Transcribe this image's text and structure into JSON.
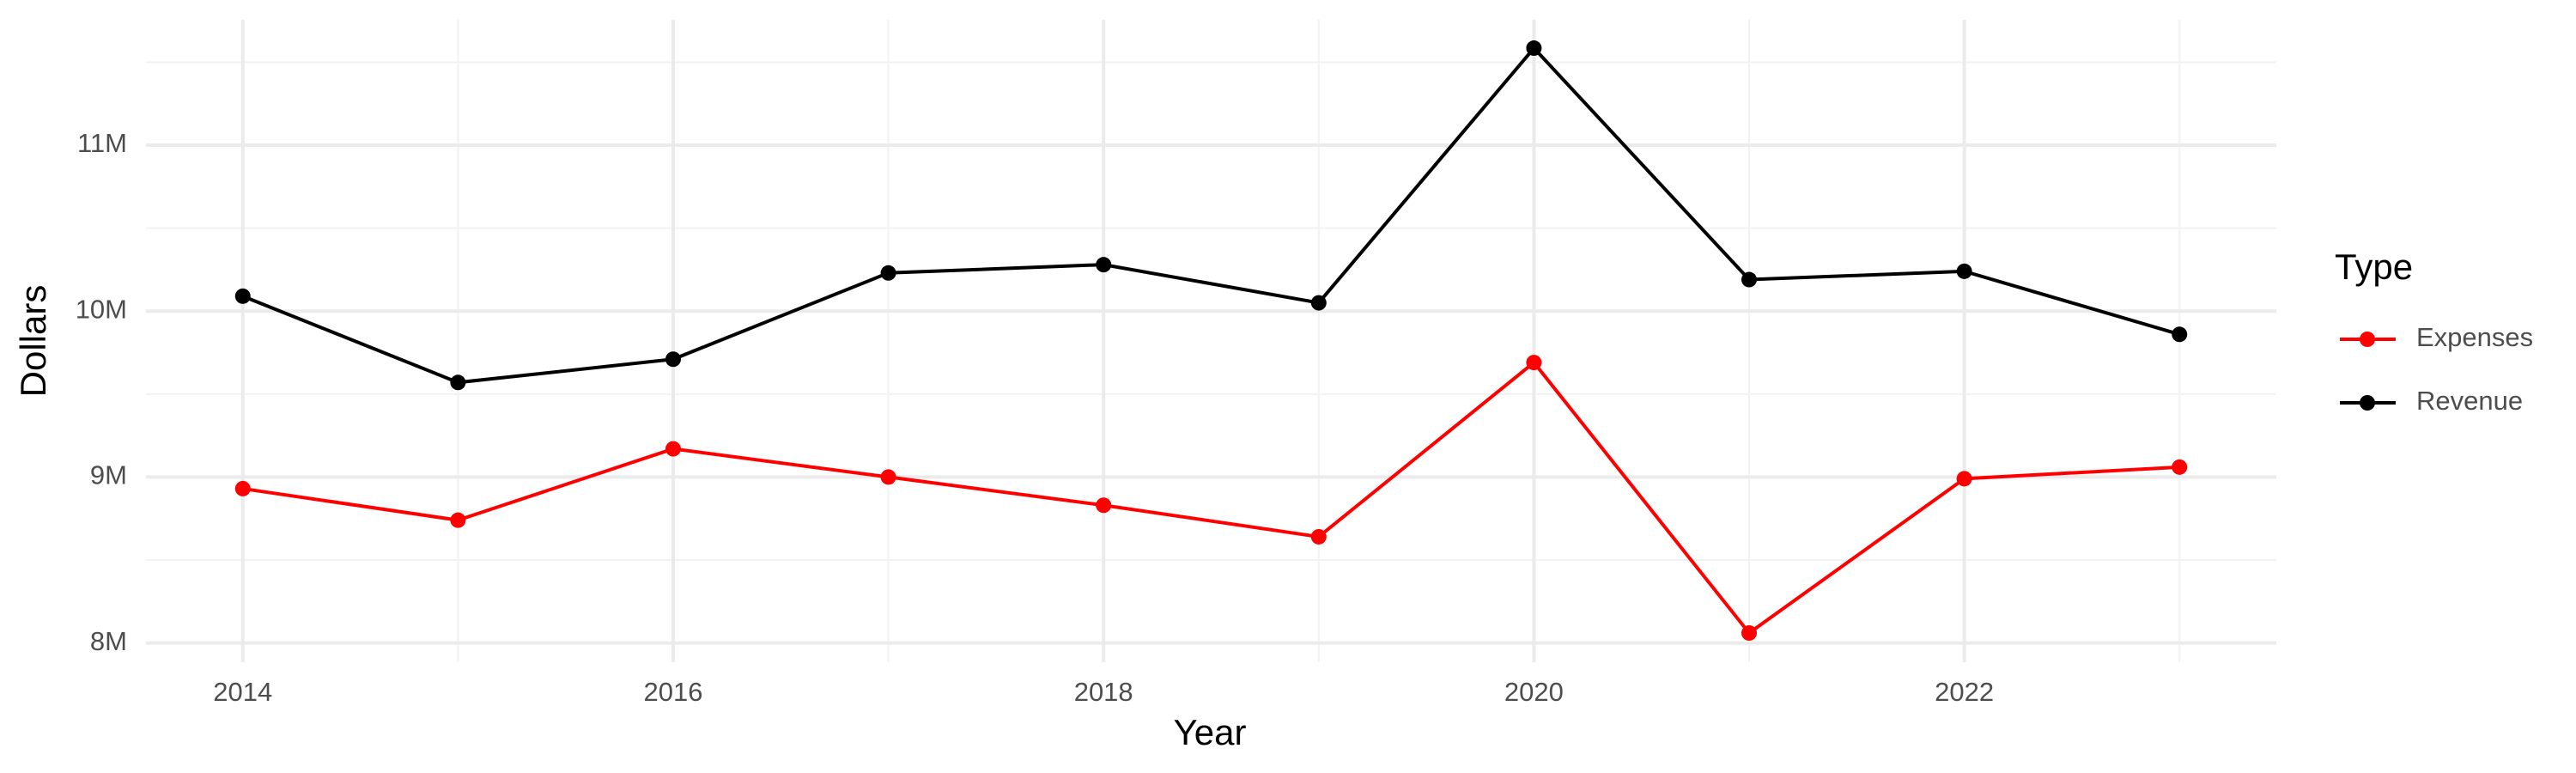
{
  "chart_data": {
    "type": "line",
    "x_label": "Year",
    "y_label": "Dollars",
    "legend_title": "Type",
    "x": [
      2014,
      2015,
      2016,
      2017,
      2018,
      2019,
      2020,
      2021,
      2022,
      2023
    ],
    "series": [
      {
        "name": "Expenses",
        "color": "#ff0000",
        "values": [
          8930000,
          8740000,
          9170000,
          9000000,
          8830000,
          8640000,
          9690000,
          8060000,
          8990000,
          9060000
        ]
      },
      {
        "name": "Revenue",
        "color": "#000000",
        "values": [
          10090000,
          9570000,
          9710000,
          10230000,
          10280000,
          10050000,
          11585000,
          10190000,
          10240000,
          9860000
        ]
      }
    ],
    "xlim": [
      2013.55,
      2023.45
    ],
    "xticks": [
      2014,
      2016,
      2018,
      2020,
      2022
    ],
    "ylim": [
      7884000,
      11756000
    ],
    "yticks": [
      {
        "value": 8000000,
        "label": "8M"
      },
      {
        "value": 9000000,
        "label": "9M"
      },
      {
        "value": 10000000,
        "label": "10M"
      },
      {
        "value": 11000000,
        "label": "11M"
      }
    ],
    "grid": true,
    "legend": "right"
  }
}
